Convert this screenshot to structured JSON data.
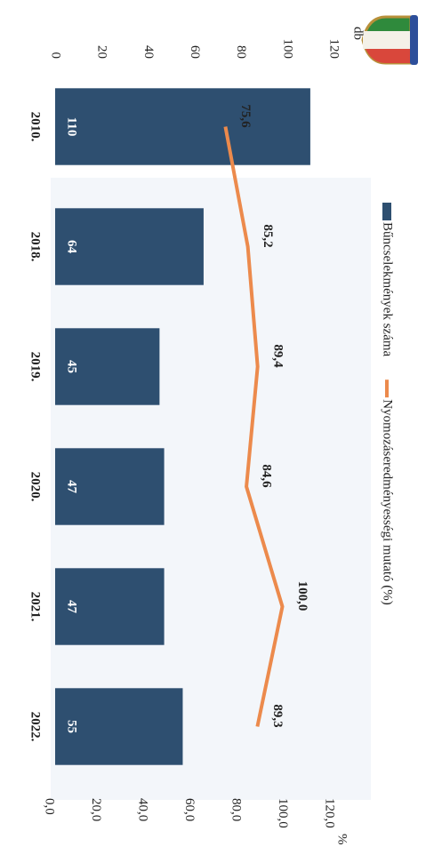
{
  "chart_data": {
    "type": "bar",
    "categories": [
      "2010.",
      "2018.",
      "2019.",
      "2020.",
      "2021.",
      "2022."
    ],
    "series": [
      {
        "name": "Bűncselekmények száma",
        "type": "bar",
        "color": "#2e4f70",
        "values": [
          110,
          64,
          45,
          47,
          47,
          55
        ]
      },
      {
        "name": "Nyomozáseredményességi mutató (%)",
        "type": "line",
        "axis": "y2",
        "color": "#ec8a4c",
        "values": [
          75.6,
          85.2,
          89.4,
          84.6,
          100.0,
          89.3
        ],
        "value_labels": [
          "75,6",
          "85,2",
          "89,4",
          "84,6",
          "100,0",
          "89,3"
        ]
      }
    ],
    "y_label": "db",
    "y2_label": "%",
    "ylim": [
      0,
      120
    ],
    "yticks": [
      0,
      20,
      40,
      60,
      80,
      100,
      120
    ],
    "y2lim": [
      0,
      120
    ],
    "y2ticks": [
      {
        "value": 0,
        "label": "0,0"
      },
      {
        "value": 20,
        "label": "20,0"
      },
      {
        "value": 40,
        "label": "40,0"
      },
      {
        "value": 60,
        "label": "60,0"
      },
      {
        "value": 80,
        "label": "80,0"
      },
      {
        "value": 100,
        "label": "100,0"
      },
      {
        "value": 120,
        "label": "120,0"
      }
    ]
  }
}
